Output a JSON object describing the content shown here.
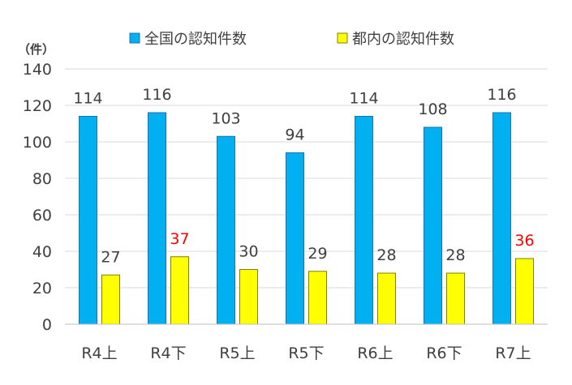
{
  "chart_data": {
    "type": "bar",
    "ylabel": "（件）",
    "ylim": [
      0,
      140
    ],
    "yticks": [
      0,
      20,
      40,
      60,
      80,
      100,
      120,
      140
    ],
    "grid": true,
    "legend_position": "top",
    "categories": [
      "R4上",
      "R4下",
      "R5上",
      "R5下",
      "R6上",
      "R6下",
      "R7上"
    ],
    "series": [
      {
        "name": "全国の認知件数",
        "color": "#00B0F0",
        "values": [
          114,
          116,
          103,
          94,
          114,
          108,
          116
        ],
        "label_colors": [
          "#404040",
          "#404040",
          "#404040",
          "#404040",
          "#404040",
          "#404040",
          "#404040"
        ]
      },
      {
        "name": "都内の認知件数",
        "color": "#FFFF00",
        "values": [
          27,
          37,
          30,
          29,
          28,
          28,
          36
        ],
        "label_colors": [
          "#404040",
          "#FF0000",
          "#404040",
          "#404040",
          "#404040",
          "#404040",
          "#FF0000"
        ]
      }
    ]
  }
}
